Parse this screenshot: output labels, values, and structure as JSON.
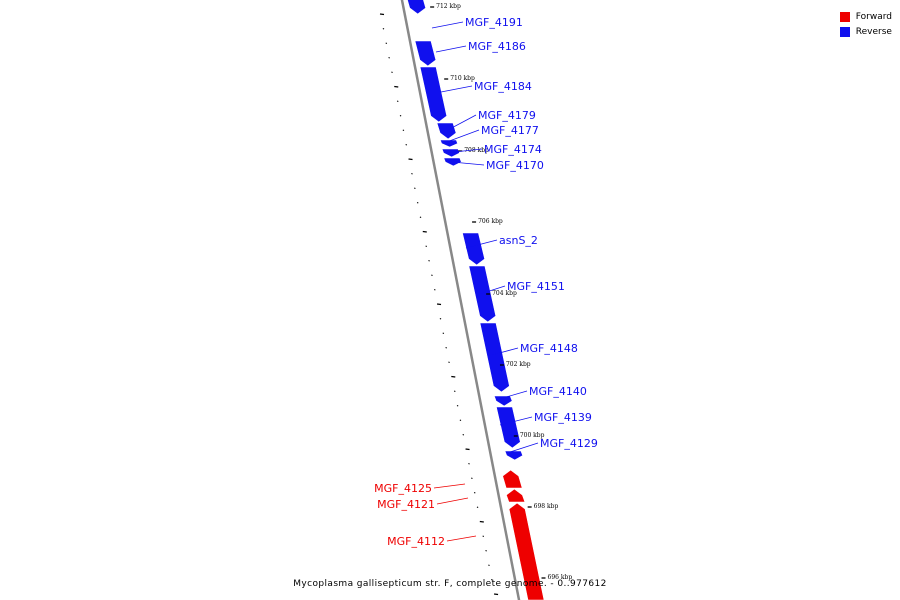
{
  "legend": {
    "items": [
      {
        "label": "Forward",
        "color": "#ee0000"
      },
      {
        "label": "Reverse",
        "color": "#1010ee"
      }
    ]
  },
  "colors": {
    "forward": "#ee0000",
    "reverse": "#1010ee",
    "backbone": "#888888"
  },
  "footer": {
    "title": "Mycoplasma gallisepticum str. F, complete genome. - 0..977612"
  },
  "ticks": [
    "712 kbp",
    "710 kbp",
    "708 kbp",
    "706 kbp",
    "704 kbp",
    "702 kbp",
    "700 kbp",
    "698 kbp",
    "696 kbp"
  ],
  "genes": [
    {
      "label": "MGF_4191",
      "strand": "reverse"
    },
    {
      "label": "MGF_4186",
      "strand": "reverse"
    },
    {
      "label": "MGF_4184",
      "strand": "reverse"
    },
    {
      "label": "MGF_4179",
      "strand": "reverse"
    },
    {
      "label": "MGF_4177",
      "strand": "reverse"
    },
    {
      "label": "MGF_4174",
      "strand": "reverse"
    },
    {
      "label": "MGF_4170",
      "strand": "reverse"
    },
    {
      "label": "asnS_2",
      "strand": "reverse"
    },
    {
      "label": "MGF_4151",
      "strand": "reverse"
    },
    {
      "label": "MGF_4148",
      "strand": "reverse"
    },
    {
      "label": "MGF_4140",
      "strand": "reverse"
    },
    {
      "label": "MGF_4139",
      "strand": "reverse"
    },
    {
      "label": "MGF_4129",
      "strand": "reverse"
    },
    {
      "label": "MGF_4125",
      "strand": "forward"
    },
    {
      "label": "MGF_4121",
      "strand": "forward"
    },
    {
      "label": "MGF_4112",
      "strand": "forward"
    }
  ]
}
